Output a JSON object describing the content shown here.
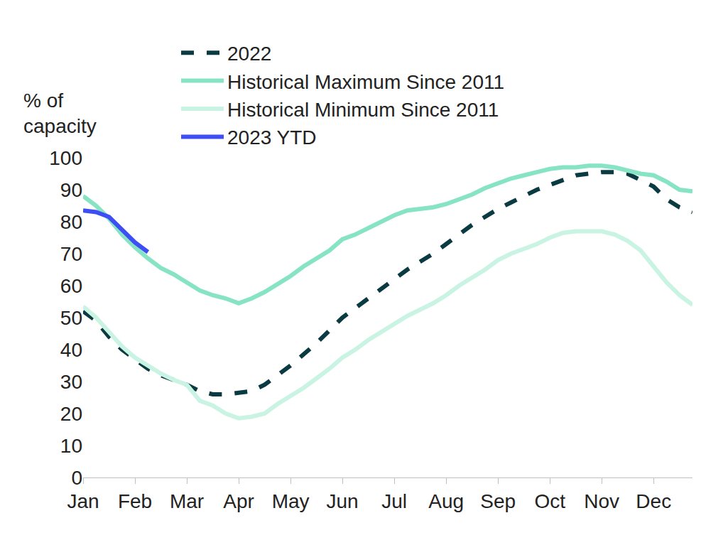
{
  "chart_data": {
    "type": "line",
    "ylabel": "% of capacity",
    "categories": [
      "Jan",
      null,
      null,
      null,
      "Feb",
      null,
      null,
      null,
      "Mar",
      null,
      null,
      null,
      "Apr",
      null,
      null,
      null,
      "May",
      null,
      null,
      null,
      "Jun",
      null,
      null,
      null,
      "Jul",
      null,
      null,
      null,
      "Aug",
      null,
      null,
      null,
      "Sep",
      null,
      null,
      null,
      "Oct",
      null,
      null,
      null,
      "Nov",
      null,
      null,
      null,
      "Dec",
      null,
      null,
      null
    ],
    "series": [
      {
        "name": "2022",
        "color": "#0b3b42",
        "line_style": "dashed",
        "values": [
          52,
          49,
          44,
          40,
          37,
          34,
          32,
          30.5,
          29,
          27,
          26,
          26,
          26.5,
          27,
          29,
          32,
          35,
          38.5,
          42,
          46,
          50,
          53,
          56,
          59,
          62,
          65,
          67.5,
          70,
          73,
          76,
          79,
          81.5,
          84,
          86,
          88,
          90,
          91.5,
          93,
          94.5,
          95,
          95.5,
          95.5,
          95,
          93,
          91,
          87,
          84.5,
          83
        ]
      },
      {
        "name": "Historical Maximum Since 2011",
        "color": "#86e3c3",
        "line_style": "solid",
        "values": [
          88,
          85,
          81,
          76,
          72,
          68.5,
          65.5,
          63.5,
          61,
          58.5,
          57,
          56,
          54.5,
          56,
          58,
          60.5,
          63,
          66,
          68.5,
          71,
          74.5,
          76,
          78,
          80,
          82,
          83.5,
          84,
          84.5,
          85.5,
          87,
          88.5,
          90.5,
          92,
          93.5,
          94.5,
          95.5,
          96.5,
          97,
          97,
          97.5,
          97.5,
          97,
          96,
          95,
          94.5,
          92.5,
          90,
          89.5
        ]
      },
      {
        "name": "Historical Minimum Since 2011",
        "color": "#c9f3e3",
        "line_style": "solid",
        "values": [
          53.5,
          50,
          45.5,
          41,
          37.5,
          35,
          32.5,
          30.5,
          29,
          24,
          22.5,
          20,
          18.5,
          19,
          20,
          23,
          25.5,
          28,
          31,
          34,
          37.5,
          40,
          43,
          45.5,
          48,
          50.5,
          52.5,
          54.5,
          57,
          60,
          62.5,
          65,
          68,
          70,
          71.5,
          73,
          75,
          76.5,
          77,
          77,
          77,
          76,
          74,
          71,
          66,
          61,
          57,
          54
        ]
      },
      {
        "name": "2023 YTD",
        "color": "#3d4ef5",
        "line_style": "solid",
        "values": [
          83.5,
          83,
          81.5,
          77.5,
          73.5,
          70.5,
          null,
          null,
          null,
          null,
          null,
          null,
          null,
          null,
          null,
          null,
          null,
          null,
          null,
          null,
          null,
          null,
          null,
          null,
          null,
          null,
          null,
          null,
          null,
          null,
          null,
          null,
          null,
          null,
          null,
          null,
          null,
          null,
          null,
          null,
          null,
          null,
          null,
          null,
          null,
          null,
          null,
          null
        ]
      }
    ],
    "ylim": [
      0,
      100
    ],
    "yticks": [
      0,
      10,
      20,
      30,
      40,
      50,
      60,
      70,
      80,
      90,
      100
    ],
    "grid": false,
    "legend": "top"
  }
}
